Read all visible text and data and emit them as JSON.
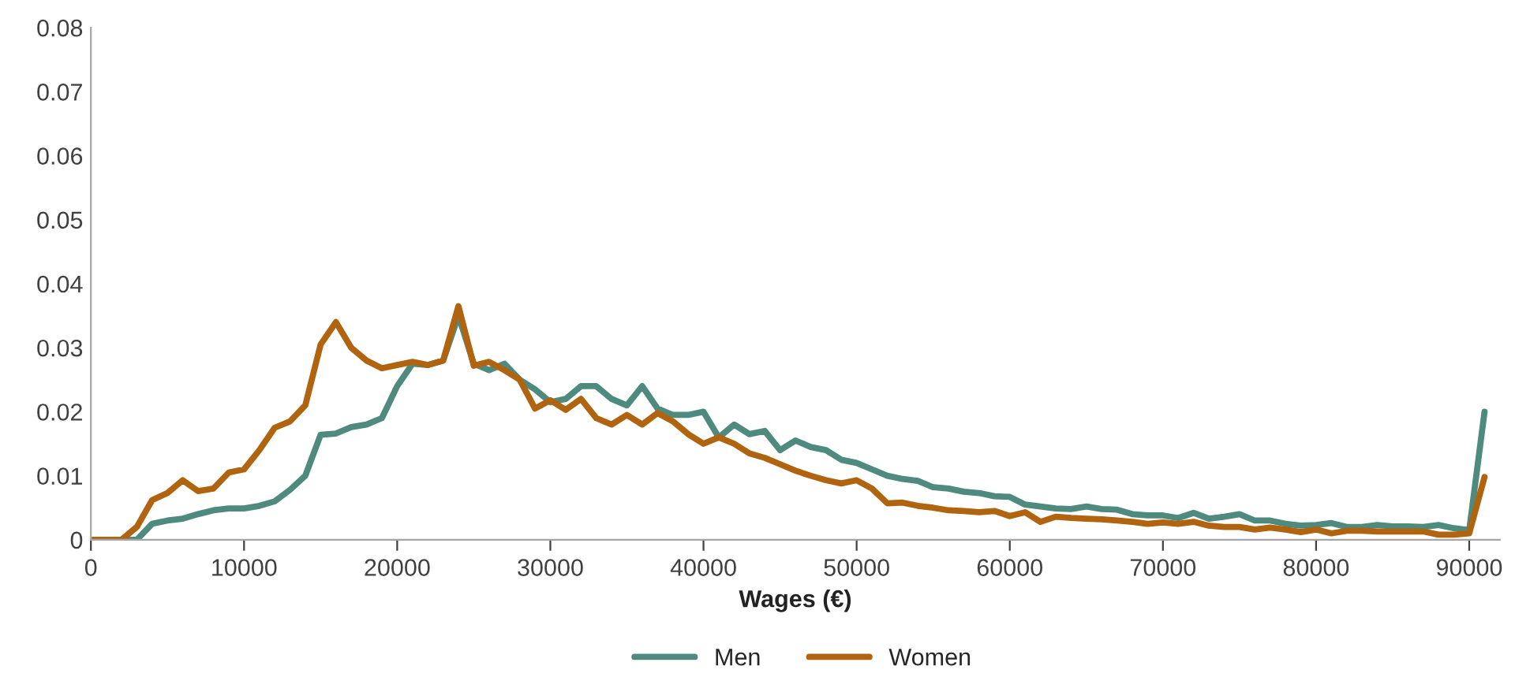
{
  "chart_data": {
    "type": "line",
    "xlabel": "Wages (€)",
    "x": [
      0,
      1000,
      2000,
      3000,
      4000,
      5000,
      6000,
      7000,
      8000,
      9000,
      10000,
      11000,
      12000,
      13000,
      14000,
      15000,
      16000,
      17000,
      18000,
      19000,
      20000,
      21000,
      22000,
      23000,
      24000,
      25000,
      26000,
      27000,
      28000,
      29000,
      30000,
      31000,
      32000,
      33000,
      34000,
      35000,
      36000,
      37000,
      38000,
      39000,
      40000,
      41000,
      42000,
      43000,
      44000,
      45000,
      46000,
      47000,
      48000,
      49000,
      50000,
      51000,
      52000,
      53000,
      54000,
      55000,
      56000,
      57000,
      58000,
      59000,
      60000,
      61000,
      62000,
      63000,
      64000,
      65000,
      66000,
      67000,
      68000,
      69000,
      70000,
      71000,
      72000,
      73000,
      74000,
      75000,
      76000,
      77000,
      78000,
      79000,
      80000,
      81000,
      82000,
      83000,
      84000,
      85000,
      86000,
      87000,
      88000,
      89000,
      90000,
      91000
    ],
    "series": [
      {
        "name": "Men",
        "color": "#4e8a7e",
        "values": [
          0,
          0,
          0,
          0,
          0.0025,
          0.003,
          0.0033,
          0.004,
          0.0046,
          0.0049,
          0.0049,
          0.0053,
          0.006,
          0.0078,
          0.01,
          0.0164,
          0.0166,
          0.0176,
          0.018,
          0.019,
          0.024,
          0.0275,
          0.0273,
          0.028,
          0.035,
          0.0275,
          0.0265,
          0.0275,
          0.025,
          0.0235,
          0.0215,
          0.022,
          0.024,
          0.024,
          0.022,
          0.021,
          0.024,
          0.0205,
          0.0195,
          0.0195,
          0.02,
          0.016,
          0.018,
          0.0165,
          0.017,
          0.014,
          0.0155,
          0.0145,
          0.014,
          0.0125,
          0.012,
          0.011,
          0.01,
          0.0095,
          0.0092,
          0.0082,
          0.008,
          0.0075,
          0.0073,
          0.0068,
          0.0067,
          0.0055,
          0.0052,
          0.0049,
          0.0048,
          0.0052,
          0.0048,
          0.0047,
          0.004,
          0.0038,
          0.0038,
          0.0034,
          0.0042,
          0.0033,
          0.0036,
          0.004,
          0.003,
          0.003,
          0.0025,
          0.0022,
          0.0023,
          0.0026,
          0.002,
          0.002,
          0.0023,
          0.0021,
          0.0021,
          0.002,
          0.0023,
          0.0018,
          0.0015,
          0.02
        ]
      },
      {
        "name": "Women",
        "color": "#b0640f",
        "values": [
          0,
          0,
          0,
          0.002,
          0.0062,
          0.0073,
          0.0093,
          0.0076,
          0.008,
          0.0105,
          0.011,
          0.014,
          0.0175,
          0.0185,
          0.021,
          0.0305,
          0.034,
          0.03,
          0.028,
          0.0268,
          0.0273,
          0.0278,
          0.0273,
          0.028,
          0.0365,
          0.0272,
          0.0278,
          0.0265,
          0.025,
          0.0205,
          0.0218,
          0.0203,
          0.022,
          0.019,
          0.018,
          0.0195,
          0.018,
          0.0198,
          0.0185,
          0.0165,
          0.015,
          0.016,
          0.015,
          0.0135,
          0.0128,
          0.0118,
          0.0108,
          0.01,
          0.0093,
          0.0088,
          0.0093,
          0.008,
          0.0057,
          0.0058,
          0.0053,
          0.005,
          0.0046,
          0.0045,
          0.0043,
          0.0045,
          0.0037,
          0.0043,
          0.0028,
          0.0036,
          0.0034,
          0.0033,
          0.0032,
          0.003,
          0.0028,
          0.0025,
          0.0027,
          0.0025,
          0.0028,
          0.0022,
          0.002,
          0.002,
          0.0016,
          0.0019,
          0.0016,
          0.0012,
          0.0016,
          0.001,
          0.0014,
          0.0014,
          0.0013,
          0.0013,
          0.0013,
          0.0013,
          0.0008,
          0.0008,
          0.001,
          0.0098
        ]
      }
    ],
    "xlim": [
      0,
      92000
    ],
    "xticks": [
      0,
      10000,
      20000,
      30000,
      40000,
      50000,
      60000,
      70000,
      80000,
      90000
    ],
    "ylim": [
      0,
      0.08
    ],
    "yticks": [
      0,
      0.01,
      0.02,
      0.03,
      0.04,
      0.05,
      0.06,
      0.07,
      0.08
    ],
    "grid": false,
    "legend": "bottom",
    "marker": "none",
    "line_style": "solid"
  }
}
